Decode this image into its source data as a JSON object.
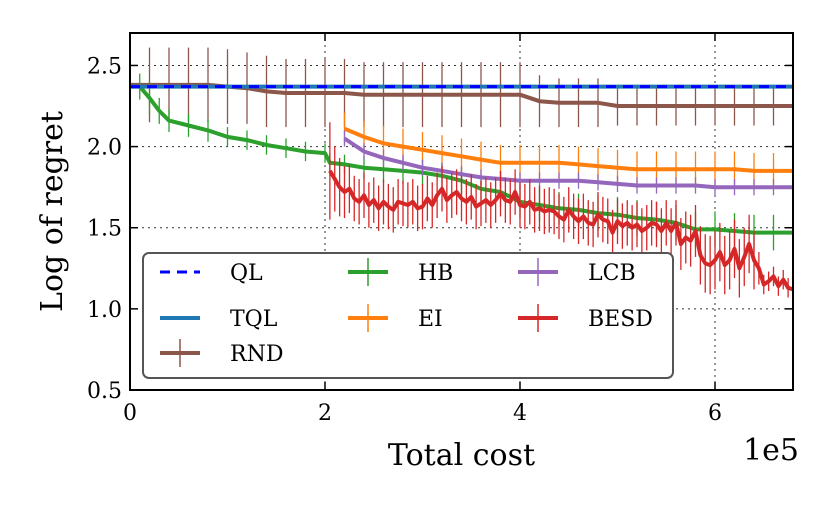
{
  "chart_data": {
    "type": "line",
    "title": "",
    "xlabel": "Total cost",
    "ylabel": "Log of regret",
    "x_multiplier_label": "1e5",
    "xlim": [
      0,
      6.8
    ],
    "ylim": [
      0.5,
      2.7
    ],
    "x_unit_scale": 100000,
    "x_ticks": [
      0,
      2,
      4,
      6
    ],
    "x_tick_labels": [
      "0",
      "2",
      "4",
      "6"
    ],
    "y_ticks": [
      0.5,
      1.0,
      1.5,
      2.0,
      2.5
    ],
    "y_tick_labels": [
      "0.5",
      "1.0",
      "1.5",
      "2.0",
      "2.5"
    ],
    "grid": true,
    "legend_position": "lower-left",
    "series": [
      {
        "name": "QL",
        "color": "#0000ff",
        "style": "dashed",
        "x": [
          0,
          6.8
        ],
        "y": [
          2.37,
          2.37
        ],
        "err": []
      },
      {
        "name": "TQL",
        "color": "#1f77b4",
        "style": "solid",
        "x": [
          0,
          6.8
        ],
        "y": [
          2.37,
          2.37
        ],
        "err": []
      },
      {
        "name": "RND",
        "color": "#8c564b",
        "style": "solid",
        "x": [
          0,
          0.2,
          0.4,
          0.6,
          0.8,
          1.0,
          1.2,
          1.4,
          1.6,
          1.8,
          2.0,
          2.2,
          2.4,
          2.6,
          2.8,
          3.0,
          3.2,
          3.4,
          3.6,
          3.8,
          4.0,
          4.2,
          4.4,
          4.6,
          4.8,
          5.0,
          5.2,
          5.4,
          5.6,
          5.8,
          6.0,
          6.2,
          6.4,
          6.6,
          6.8
        ],
        "y": [
          2.38,
          2.38,
          2.38,
          2.38,
          2.38,
          2.37,
          2.36,
          2.34,
          2.33,
          2.33,
          2.33,
          2.33,
          2.32,
          2.32,
          2.32,
          2.32,
          2.32,
          2.32,
          2.32,
          2.32,
          2.32,
          2.28,
          2.27,
          2.27,
          2.27,
          2.25,
          2.25,
          2.25,
          2.25,
          2.25,
          2.25,
          2.25,
          2.25,
          2.25,
          2.25
        ],
        "err": [
          0,
          0.23,
          0.23,
          0.23,
          0.23,
          0.23,
          0.22,
          0.22,
          0.21,
          0.21,
          0.21,
          0.21,
          0.2,
          0.2,
          0.2,
          0.2,
          0.2,
          0.2,
          0.2,
          0.2,
          0.2,
          0.16,
          0.15,
          0.15,
          0.15,
          0.12,
          0.12,
          0.12,
          0.12,
          0.12,
          0.12,
          0.12,
          0.12,
          0.12,
          0.12
        ]
      },
      {
        "name": "HB",
        "color": "#2ca02c",
        "style": "solid",
        "x": [
          0,
          0.1,
          0.2,
          0.3,
          0.4,
          0.6,
          0.8,
          1.0,
          1.2,
          1.4,
          1.6,
          1.8,
          2.0,
          2.05,
          2.2,
          2.4,
          2.6,
          2.8,
          3.0,
          3.2,
          3.4,
          3.6,
          3.8,
          4.0,
          4.2,
          4.4,
          4.6,
          4.8,
          5.0,
          5.2,
          5.4,
          5.6,
          5.8,
          6.0,
          6.2,
          6.4,
          6.6,
          6.8
        ],
        "y": [
          2.37,
          2.37,
          2.3,
          2.22,
          2.16,
          2.13,
          2.1,
          2.06,
          2.04,
          2.01,
          1.99,
          1.97,
          1.96,
          1.9,
          1.89,
          1.87,
          1.86,
          1.85,
          1.84,
          1.82,
          1.79,
          1.74,
          1.72,
          1.66,
          1.64,
          1.62,
          1.61,
          1.59,
          1.58,
          1.56,
          1.55,
          1.53,
          1.49,
          1.49,
          1.48,
          1.47,
          1.47,
          1.47
        ],
        "err": [
          0,
          0.08,
          0.1,
          0.08,
          0.07,
          0.07,
          0.07,
          0.06,
          0.06,
          0.06,
          0.06,
          0.06,
          0.06,
          0.06,
          0.06,
          0.07,
          0.08,
          0.08,
          0.08,
          0.08,
          0.08,
          0.08,
          0.09,
          0.1,
          0.1,
          0.1,
          0.1,
          0.11,
          0.11,
          0.11,
          0.11,
          0.11,
          0.11,
          0.11,
          0.11,
          0.11,
          0.11,
          0.11
        ]
      },
      {
        "name": "EI",
        "color": "#ff7f0e",
        "style": "solid",
        "x": [
          2.2,
          2.4,
          2.6,
          2.8,
          3.0,
          3.2,
          3.4,
          3.6,
          3.8,
          4.0,
          4.2,
          4.4,
          4.6,
          4.8,
          5.0,
          5.2,
          5.4,
          5.6,
          5.8,
          6.0,
          6.2,
          6.4,
          6.6,
          6.8
        ],
        "y": [
          2.11,
          2.06,
          2.02,
          2.0,
          1.98,
          1.96,
          1.94,
          1.92,
          1.9,
          1.9,
          1.9,
          1.9,
          1.89,
          1.88,
          1.87,
          1.86,
          1.86,
          1.86,
          1.86,
          1.86,
          1.86,
          1.85,
          1.85,
          1.85
        ],
        "err": [
          0.1,
          0.1,
          0.11,
          0.11,
          0.11,
          0.11,
          0.11,
          0.11,
          0.11,
          0.11,
          0.11,
          0.11,
          0.11,
          0.11,
          0.11,
          0.11,
          0.11,
          0.11,
          0.11,
          0.11,
          0.11,
          0.11,
          0.11,
          0.11
        ]
      },
      {
        "name": "LCB",
        "color": "#9467bd",
        "style": "solid",
        "x": [
          2.2,
          2.4,
          2.6,
          2.8,
          3.0,
          3.2,
          3.4,
          3.6,
          3.8,
          4.0,
          4.2,
          4.4,
          4.6,
          4.8,
          5.0,
          5.2,
          5.4,
          5.6,
          5.8,
          6.0,
          6.2,
          6.4,
          6.6,
          6.8
        ],
        "y": [
          2.05,
          1.97,
          1.93,
          1.9,
          1.87,
          1.85,
          1.83,
          1.81,
          1.8,
          1.79,
          1.79,
          1.79,
          1.79,
          1.78,
          1.77,
          1.76,
          1.76,
          1.76,
          1.76,
          1.75,
          1.75,
          1.75,
          1.75,
          1.75
        ],
        "err": [
          0.05,
          0.05,
          0.05,
          0.05,
          0.05,
          0.05,
          0.05,
          0.05,
          0.05,
          0.05,
          0.05,
          0.05,
          0.05,
          0.05,
          0.05,
          0.05,
          0.05,
          0.05,
          0.05,
          0.05,
          0.05,
          0.05,
          0.05,
          0.05
        ]
      },
      {
        "name": "BESD",
        "color": "#d62728",
        "style": "solid",
        "x": [
          2.05,
          2.1,
          2.15,
          2.2,
          2.25,
          2.3,
          2.35,
          2.4,
          2.45,
          2.5,
          2.55,
          2.6,
          2.65,
          2.7,
          2.75,
          2.8,
          2.85,
          2.9,
          2.95,
          3.0,
          3.05,
          3.1,
          3.15,
          3.2,
          3.25,
          3.3,
          3.35,
          3.4,
          3.45,
          3.5,
          3.55,
          3.6,
          3.65,
          3.7,
          3.75,
          3.8,
          3.85,
          3.9,
          3.95,
          4.0,
          4.05,
          4.1,
          4.15,
          4.2,
          4.25,
          4.3,
          4.35,
          4.4,
          4.45,
          4.5,
          4.55,
          4.6,
          4.65,
          4.7,
          4.75,
          4.8,
          4.85,
          4.9,
          4.95,
          5.0,
          5.05,
          5.1,
          5.15,
          5.2,
          5.25,
          5.3,
          5.35,
          5.4,
          5.45,
          5.5,
          5.55,
          5.6,
          5.65,
          5.7,
          5.75,
          5.8,
          5.85,
          5.9,
          5.95,
          6.0,
          6.05,
          6.1,
          6.15,
          6.2,
          6.25,
          6.3,
          6.35,
          6.4,
          6.45,
          6.5,
          6.55,
          6.6,
          6.65,
          6.7,
          6.75,
          6.8
        ],
        "y": [
          1.85,
          1.8,
          1.75,
          1.72,
          1.74,
          1.68,
          1.66,
          1.7,
          1.64,
          1.67,
          1.62,
          1.66,
          1.63,
          1.61,
          1.66,
          1.65,
          1.64,
          1.66,
          1.62,
          1.63,
          1.68,
          1.64,
          1.7,
          1.74,
          1.67,
          1.7,
          1.72,
          1.68,
          1.66,
          1.69,
          1.63,
          1.65,
          1.67,
          1.64,
          1.67,
          1.71,
          1.67,
          1.66,
          1.72,
          1.64,
          1.63,
          1.66,
          1.61,
          1.62,
          1.6,
          1.61,
          1.6,
          1.57,
          1.55,
          1.61,
          1.57,
          1.54,
          1.57,
          1.53,
          1.52,
          1.58,
          1.55,
          1.54,
          1.47,
          1.54,
          1.51,
          1.53,
          1.5,
          1.52,
          1.48,
          1.5,
          1.53,
          1.52,
          1.48,
          1.53,
          1.48,
          1.53,
          1.4,
          1.44,
          1.42,
          1.48,
          1.33,
          1.28,
          1.27,
          1.3,
          1.35,
          1.27,
          1.3,
          1.37,
          1.25,
          1.32,
          1.4,
          1.3,
          1.25,
          1.15,
          1.17,
          1.2,
          1.14,
          1.18,
          1.13,
          1.12
        ],
        "err": [
          0.3,
          0.2,
          0.18,
          0.16,
          0.15,
          0.14,
          0.14,
          0.14,
          0.14,
          0.14,
          0.14,
          0.14,
          0.14,
          0.14,
          0.14,
          0.14,
          0.14,
          0.14,
          0.14,
          0.14,
          0.14,
          0.14,
          0.14,
          0.14,
          0.14,
          0.14,
          0.14,
          0.14,
          0.14,
          0.14,
          0.14,
          0.14,
          0.14,
          0.14,
          0.14,
          0.14,
          0.14,
          0.14,
          0.14,
          0.14,
          0.14,
          0.14,
          0.14,
          0.14,
          0.14,
          0.14,
          0.14,
          0.14,
          0.14,
          0.14,
          0.14,
          0.14,
          0.14,
          0.14,
          0.14,
          0.14,
          0.14,
          0.14,
          0.14,
          0.14,
          0.14,
          0.14,
          0.14,
          0.14,
          0.14,
          0.14,
          0.14,
          0.14,
          0.14,
          0.14,
          0.14,
          0.14,
          0.16,
          0.16,
          0.16,
          0.16,
          0.18,
          0.18,
          0.18,
          0.18,
          0.18,
          0.18,
          0.18,
          0.18,
          0.18,
          0.18,
          0.18,
          0.18,
          0.1,
          0.06,
          0.06,
          0.06,
          0.06,
          0.06,
          0.06,
          0.06
        ]
      }
    ]
  }
}
